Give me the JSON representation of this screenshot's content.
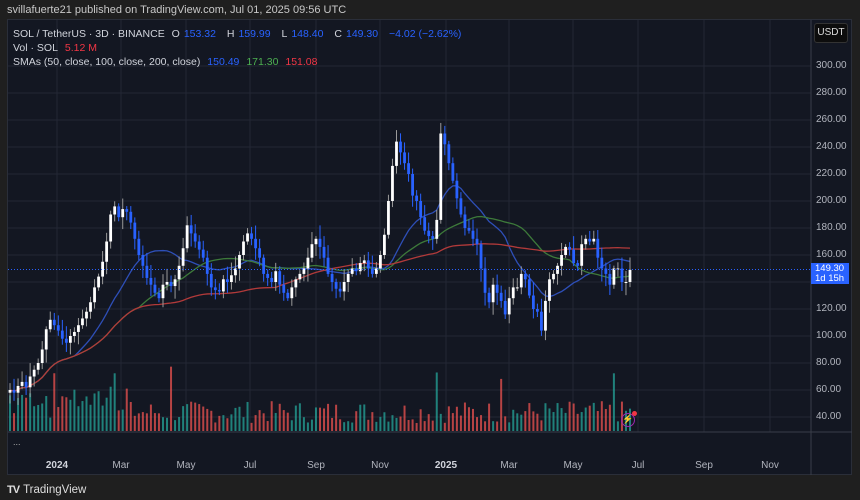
{
  "publisher": "svillafuerte21 published on TradingView.com, Jul 01, 2025 09:56 UTC",
  "legend": {
    "symbol": "SOL / TetherUS · 3D · BINANCE",
    "o_label": "O",
    "o": "153.32",
    "h_label": "H",
    "h": "159.99",
    "l_label": "L",
    "l": "148.40",
    "c_label": "C",
    "c": "149.30",
    "change": "−4.02 (−2.62%)",
    "vol_label": "Vol · SOL",
    "vol": "5.12 M",
    "sma_label": "SMAs (50, close, 100, close, 200, close)",
    "sma50": "150.49",
    "sma100": "171.30",
    "sma200": "151.08"
  },
  "currency": "USDT",
  "price_tag": {
    "price": "149.30",
    "countdown": "1d 15h"
  },
  "footer": {
    "brand": "TradingView",
    "more": "..."
  },
  "colors": {
    "up": "#ffffff",
    "down": "#2962ff",
    "sma50": "#2e4fb8",
    "sma100": "#3d7a3a",
    "sma200": "#b23a3a",
    "vol_up": "#26a69a",
    "vol_down": "#ef5350"
  },
  "chart_data": {
    "type": "candlestick",
    "title": "SOL / TetherUS · 3D · BINANCE",
    "ylabel": "USDT",
    "y_ticks": [
      300,
      280,
      260,
      240,
      220,
      200,
      180,
      160,
      140,
      120,
      100,
      80,
      60,
      40
    ],
    "x_ticks": [
      "2024",
      "Mar",
      "May",
      "Jul",
      "Sep",
      "Nov",
      "2025",
      "Mar",
      "May",
      "Jul",
      "Sep",
      "Nov"
    ],
    "ylim": [
      30,
      310
    ],
    "closes": [
      60,
      58,
      63,
      66,
      62,
      70,
      75,
      80,
      90,
      105,
      112,
      108,
      104,
      98,
      95,
      100,
      103,
      108,
      113,
      118,
      125,
      136,
      144,
      155,
      170,
      190,
      196,
      188,
      194,
      192,
      184,
      172,
      160,
      152,
      143,
      138,
      132,
      128,
      138,
      140,
      137,
      142,
      152,
      165,
      182,
      176,
      170,
      164,
      158,
      146,
      136,
      134,
      133,
      142,
      140,
      145,
      150,
      160,
      170,
      176,
      172,
      165,
      158,
      146,
      143,
      140,
      148,
      138,
      132,
      128,
      136,
      142,
      146,
      150,
      158,
      168,
      172,
      166,
      158,
      146,
      140,
      135,
      133,
      140,
      146,
      150,
      148,
      154,
      156,
      150,
      146,
      150,
      160,
      175,
      200,
      226,
      244,
      236,
      228,
      220,
      204,
      200,
      188,
      178,
      174,
      172,
      186,
      250,
      242,
      228,
      215,
      202,
      190,
      180,
      178,
      172,
      168,
      150,
      132,
      125,
      138,
      132,
      126,
      116,
      128,
      136,
      136,
      146,
      142,
      130,
      120,
      118,
      104,
      126,
      142,
      146,
      152,
      160,
      166,
      164,
      154,
      152,
      168,
      172,
      170,
      172,
      158,
      150,
      146,
      138,
      150,
      150,
      140,
      140,
      149
    ],
    "sma_values_last": {
      "SMA50": 150.49,
      "SMA100": 171.3,
      "SMA200": 151.08
    },
    "last": {
      "open": 153.32,
      "high": 159.99,
      "low": 148.4,
      "close": 149.3,
      "change": -4.02,
      "change_pct": -2.62,
      "volume": "5.12M"
    }
  }
}
